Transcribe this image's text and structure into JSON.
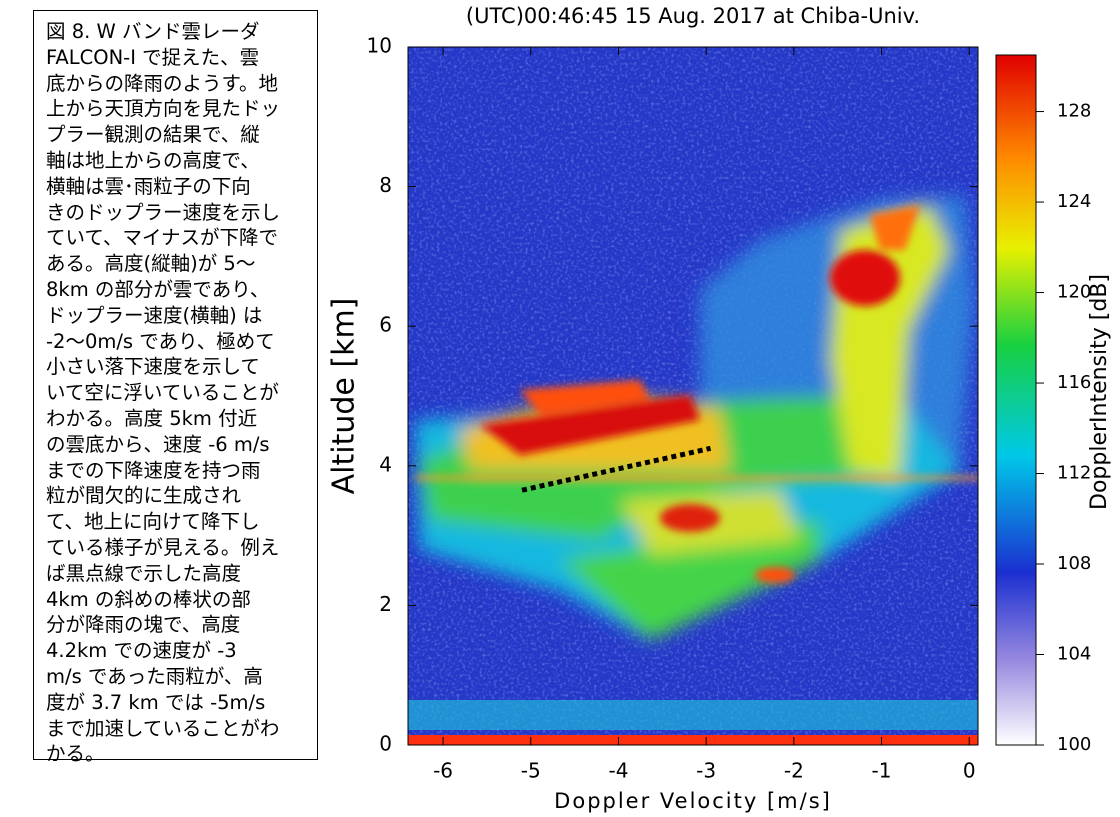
{
  "caption": {
    "lines": [
      "図 8. W バンド雲レーダ",
      "FALCON-I で捉えた、雲",
      "底からの降雨のようす。地",
      "上から天頂方向を見たドッ",
      "プラー観測の結果で、縦",
      "軸は地上からの高度で、",
      "横軸は雲･雨粒子の下向",
      "きのドップラー速度を示し",
      "ていて、マイナスが下降で",
      "ある。高度(縦軸)が 5～",
      "8km の部分が雲であり、",
      "ドップラー速度(横軸) は",
      "-2～0m/s であり、極めて",
      "小さい落下速度を示して",
      "いて空に浮いていることが",
      "わかる。高度 5km 付近",
      "の雲底から、速度 -6 m/s",
      "までの下降速度を持つ雨",
      "粒が間欠的に生成され",
      "て、地上に向けて降下し",
      "ている様子が見える。例え",
      "ば黒点線で示した高度",
      "4km の斜めの棒状の部",
      "分が降雨の塊で、高度",
      "4.2km での速度が -3",
      "m/s であった雨粒が、高",
      "度が 3.7 km では -5m/s",
      "まで加速していることがわ",
      "かる。"
    ]
  },
  "chart_data": {
    "type": "heatmap",
    "title": "(UTC)00:46:45  15 Aug. 2017 at Chiba-Univ.",
    "xlabel": "Doppler Velocity [m/s]",
    "ylabel": "Altitude [km]",
    "xlim": [
      -6.4,
      0.1
    ],
    "xticks": [
      -6,
      -5,
      -4,
      -3,
      -2,
      -1,
      0
    ],
    "ylim": [
      0,
      10
    ],
    "yticks": [
      0,
      2,
      4,
      6,
      8,
      10
    ],
    "colorbar": {
      "label": "DopplerIntensity [dB]",
      "lim": [
        100,
        130.5
      ],
      "ticks": [
        100,
        104,
        108,
        112,
        116,
        120,
        124,
        128
      ]
    },
    "annotation_line": {
      "x": [
        -5.1,
        -2.95
      ],
      "y": [
        3.65,
        4.25
      ],
      "color": "#000000",
      "style": "dotted"
    }
  }
}
